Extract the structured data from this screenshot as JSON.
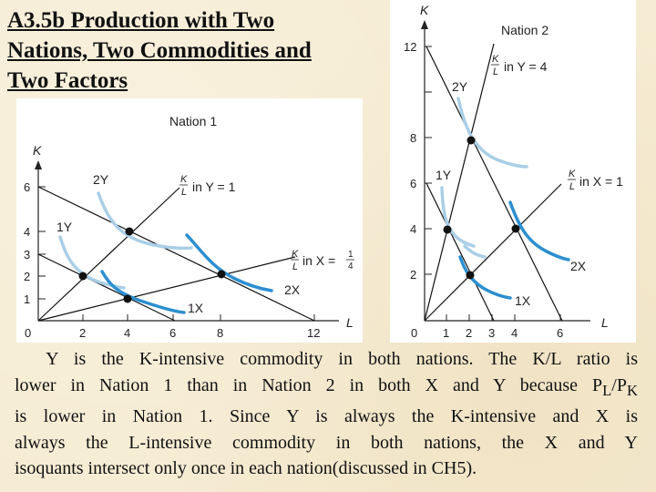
{
  "slide": {
    "title_lines": [
      "A3.5b Production with Two",
      "Nations, Two Commodities and",
      "Two Factors"
    ],
    "caption": {
      "line1": "Y is the K-intensive commodity in both nations. The K/L ratio is",
      "line2a": "lower in Nation 1 than in Nation 2 in both X and Y because P",
      "line2_sub1": "L",
      "line2_mid": "/P",
      "line2_sub2": "K",
      "line3": "is lower in Nation 1. Since Y is always the K-intensive and X is",
      "line4": "always the L-intensive commodity in both nations, the X and Y",
      "line5": "isoquants intersect only once in each nation(discussed in CH5)."
    }
  },
  "nation1": {
    "title": "Nation 1",
    "y_axis_label": "K",
    "x_axis_label": "L",
    "y_ticks": [
      "6",
      "4",
      "3",
      "2",
      "1"
    ],
    "x_ticks": [
      "0",
      "2",
      "4",
      "6",
      "8",
      "12"
    ],
    "ray_y_label": "in Y = 1",
    "ray_x_label": "in X = ",
    "frac_num": "K",
    "frac_den": "L",
    "one_quarter_num": "1",
    "one_quarter_den": "4",
    "isoquants": {
      "y2": "2Y",
      "y1": "1Y",
      "x2": "2X",
      "x1": "1X"
    }
  },
  "nation2": {
    "title": "Nation 2",
    "y_axis_label": "K",
    "x_axis_label": "L",
    "y_ticks": [
      "12",
      "8",
      "6",
      "4",
      "2"
    ],
    "x_ticks": [
      "0",
      "1",
      "2",
      "3",
      "4",
      "6"
    ],
    "ray_y_label": "in Y = 4",
    "ray_x_label": "in X = 1",
    "frac_num": "K",
    "frac_den": "L",
    "isoquants": {
      "y2": "2Y",
      "y1": "1Y",
      "x2": "2X",
      "x1": "1X"
    }
  },
  "colors": {
    "background": "#f6ecd3",
    "y_isoquant": "#a9cfe6",
    "x_isoquant": "#2c8fd0",
    "line": "#111111"
  }
}
